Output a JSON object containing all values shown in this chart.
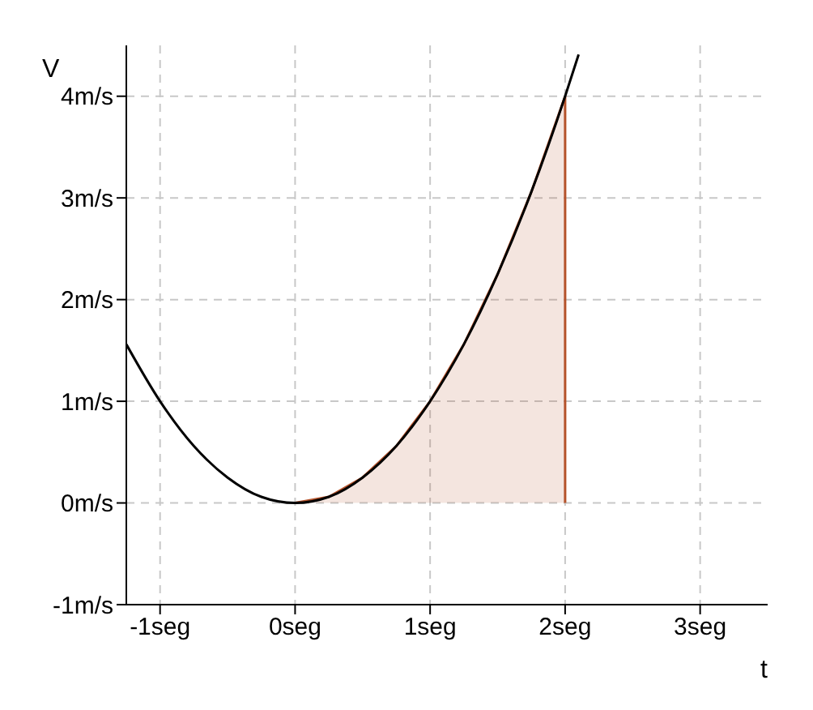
{
  "chart_data": {
    "type": "line",
    "xlabel": "t",
    "ylabel": "V",
    "xlim": [
      -1.25,
      3.5
    ],
    "ylim": [
      -1,
      4.5
    ],
    "xticks": [
      {
        "value": -1,
        "label": "-1seg"
      },
      {
        "value": 0,
        "label": "0seg"
      },
      {
        "value": 1,
        "label": "1seg"
      },
      {
        "value": 2,
        "label": "2seg"
      },
      {
        "value": 3,
        "label": "3seg"
      }
    ],
    "yticks": [
      {
        "value": -1,
        "label": "-1m/s"
      },
      {
        "value": 0,
        "label": "0m/s"
      },
      {
        "value": 1,
        "label": "1m/s"
      },
      {
        "value": 2,
        "label": "2m/s"
      },
      {
        "value": 3,
        "label": "3m/s"
      },
      {
        "value": 4,
        "label": "4m/s"
      }
    ],
    "grid": true,
    "line_style": "solid",
    "marker": "none",
    "series": [
      {
        "type": "area",
        "color": "#b5532b",
        "x": [
          0,
          0.25,
          0.5,
          0.75,
          1,
          1.25,
          1.5,
          1.75,
          2,
          2
        ],
        "values": [
          0,
          0.06,
          0.25,
          0.56,
          1,
          1.56,
          2.25,
          3.06,
          4,
          0
        ]
      },
      {
        "color": "#000000",
        "x": [
          -1.25,
          -1,
          -0.75,
          -0.5,
          -0.25,
          0,
          0.25,
          0.5,
          0.75,
          1,
          1.25,
          1.5,
          1.75,
          2,
          2.1
        ],
        "values": [
          1.56,
          1,
          0.56,
          0.25,
          0.06,
          0,
          0.06,
          0.25,
          0.56,
          1,
          1.56,
          2.25,
          3.06,
          4,
          4.41
        ]
      }
    ]
  }
}
